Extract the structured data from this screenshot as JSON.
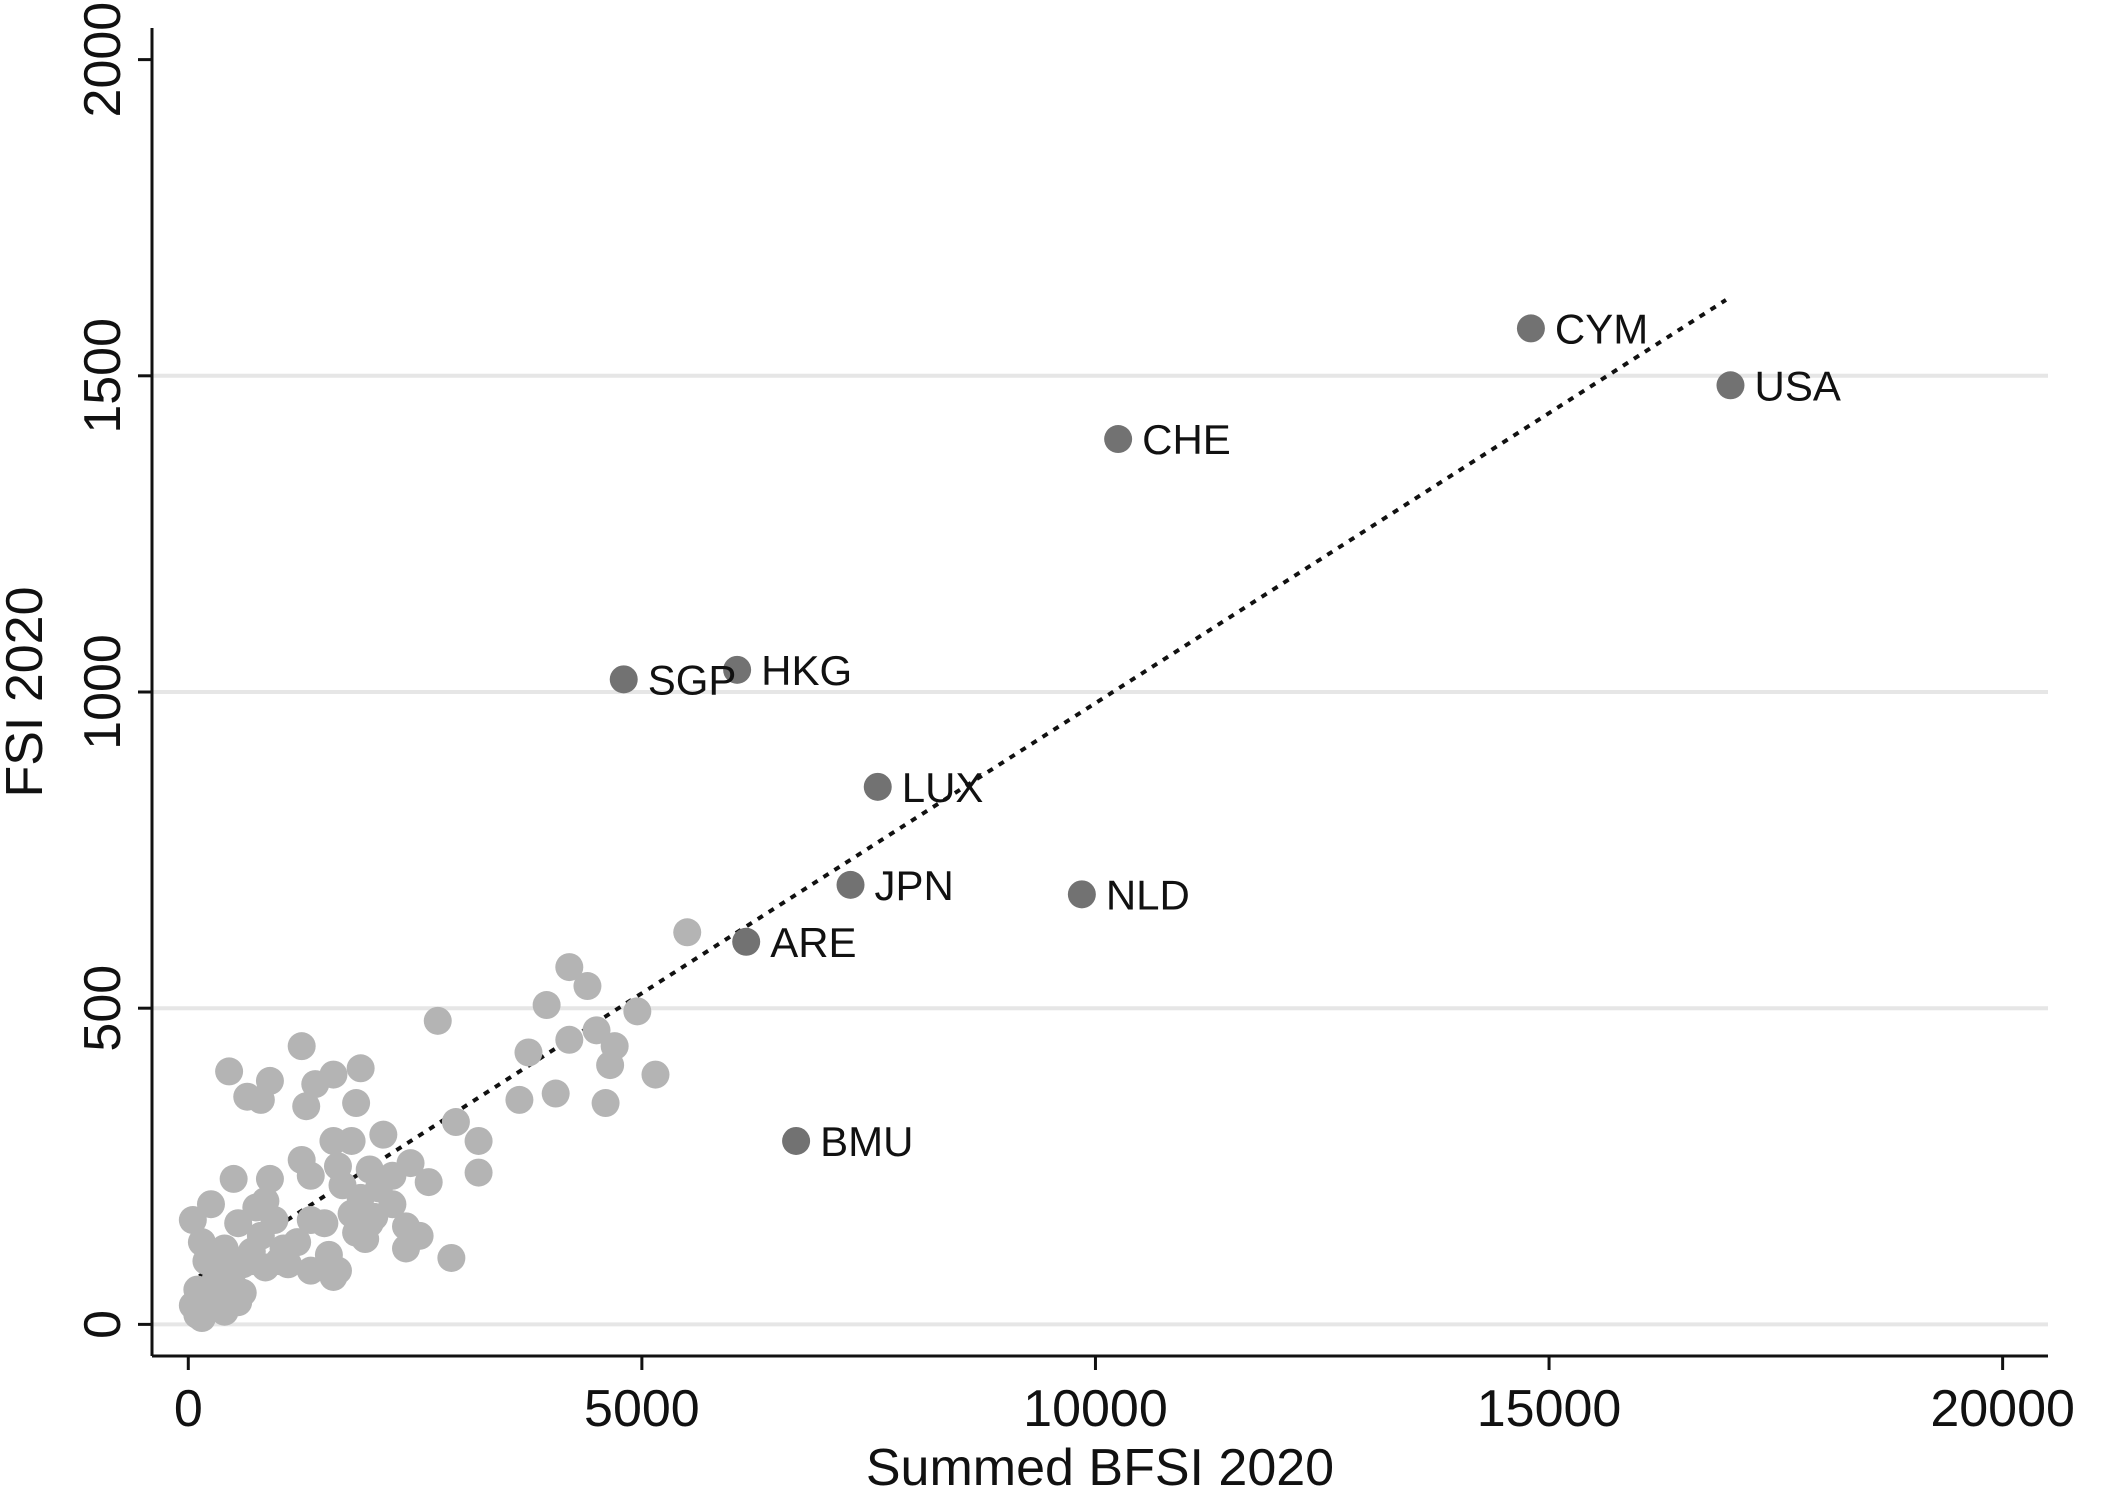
{
  "chart_data": {
    "type": "scatter",
    "title": "",
    "xlabel": "Summed BFSI 2020",
    "ylabel": "FSI 2020",
    "xlim": [
      -400,
      20500
    ],
    "ylim": [
      -50,
      2050
    ],
    "x_ticks": [
      0,
      5000,
      10000,
      15000,
      20000
    ],
    "x_tick_labels": [
      "0",
      "5000",
      "10000",
      "15000",
      "20000"
    ],
    "y_ticks": [
      0,
      500,
      1000,
      1500,
      2000
    ],
    "y_tick_labels": [
      "0",
      "500",
      "1000",
      "1500",
      "2000"
    ],
    "grid": "horizontal",
    "colors": {
      "background_point": "#b4b4b4",
      "highlight_point": "#727272",
      "gridline": "#e6e6e6",
      "axis": "#111111",
      "fit_line": "#111111"
    },
    "fit_line": {
      "style": "dotted",
      "x": [
        0,
        16950
      ],
      "y": [
        65,
        1620
      ]
    },
    "labeled_points": [
      {
        "label": "CYM",
        "x": 14800,
        "y": 1575
      },
      {
        "label": "USA",
        "x": 17000,
        "y": 1485
      },
      {
        "label": "CHE",
        "x": 10250,
        "y": 1400
      },
      {
        "label": "SGP",
        "x": 4800,
        "y": 1020
      },
      {
        "label": "HKG",
        "x": 6050,
        "y": 1035
      },
      {
        "label": "LUX",
        "x": 7600,
        "y": 850
      },
      {
        "label": "JPN",
        "x": 7300,
        "y": 695
      },
      {
        "label": "NLD",
        "x": 9850,
        "y": 680
      },
      {
        "label": "ARE",
        "x": 6150,
        "y": 605
      },
      {
        "label": "BMU",
        "x": 6700,
        "y": 290
      }
    ],
    "points": [
      [
        5500,
        620
      ],
      [
        4200,
        565
      ],
      [
        4400,
        535
      ],
      [
        2750,
        480
      ],
      [
        4950,
        495
      ],
      [
        3950,
        505
      ],
      [
        4500,
        465
      ],
      [
        4200,
        450
      ],
      [
        4700,
        440
      ],
      [
        4650,
        410
      ],
      [
        4600,
        350
      ],
      [
        5150,
        395
      ],
      [
        3750,
        430
      ],
      [
        4050,
        365
      ],
      [
        3650,
        355
      ],
      [
        3200,
        290
      ],
      [
        3200,
        240
      ],
      [
        2950,
        320
      ],
      [
        2900,
        105
      ],
      [
        1250,
        440
      ],
      [
        1600,
        395
      ],
      [
        1900,
        405
      ],
      [
        450,
        400
      ],
      [
        900,
        385
      ],
      [
        1400,
        380
      ],
      [
        1300,
        345
      ],
      [
        650,
        360
      ],
      [
        800,
        355
      ],
      [
        1850,
        350
      ],
      [
        2150,
        300
      ],
      [
        1600,
        290
      ],
      [
        1800,
        290
      ],
      [
        1250,
        260
      ],
      [
        1350,
        235
      ],
      [
        1650,
        250
      ],
      [
        2000,
        245
      ],
      [
        2450,
        255
      ],
      [
        2250,
        235
      ],
      [
        2650,
        225
      ],
      [
        2100,
        215
      ],
      [
        1700,
        220
      ],
      [
        500,
        230
      ],
      [
        900,
        230
      ],
      [
        250,
        190
      ],
      [
        750,
        185
      ],
      [
        850,
        195
      ],
      [
        1900,
        200
      ],
      [
        2250,
        190
      ],
      [
        1800,
        175
      ],
      [
        2050,
        170
      ],
      [
        550,
        160
      ],
      [
        950,
        165
      ],
      [
        1350,
        165
      ],
      [
        1500,
        160
      ],
      [
        50,
        165
      ],
      [
        2400,
        155
      ],
      [
        2550,
        140
      ],
      [
        1850,
        145
      ],
      [
        1950,
        135
      ],
      [
        2400,
        120
      ],
      [
        150,
        130
      ],
      [
        400,
        120
      ],
      [
        700,
        115
      ],
      [
        1050,
        120
      ],
      [
        1550,
        110
      ],
      [
        200,
        100
      ],
      [
        600,
        95
      ],
      [
        850,
        90
      ],
      [
        1100,
        95
      ],
      [
        1350,
        85
      ],
      [
        1650,
        85
      ],
      [
        1600,
        75
      ],
      [
        300,
        70
      ],
      [
        500,
        60
      ],
      [
        100,
        55
      ],
      [
        200,
        45
      ],
      [
        350,
        40
      ],
      [
        550,
        35
      ],
      [
        50,
        30
      ],
      [
        250,
        25
      ],
      [
        400,
        20
      ],
      [
        100,
        15
      ],
      [
        150,
        10
      ],
      [
        700,
        100
      ],
      [
        1000,
        100
      ],
      [
        450,
        85
      ],
      [
        800,
        140
      ],
      [
        1200,
        130
      ],
      [
        2000,
        160
      ],
      [
        600,
        50
      ]
    ]
  }
}
